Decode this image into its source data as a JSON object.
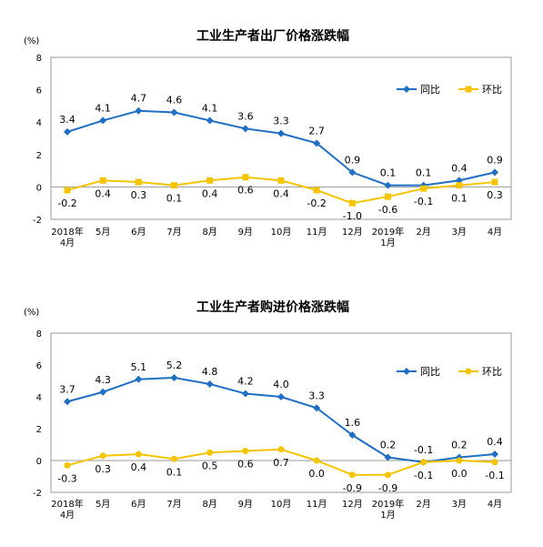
{
  "chart_data": [
    {
      "type": "line",
      "title": "工业生产者出厂价格涨跌幅",
      "unit": "(%)",
      "ylim": [
        -2,
        8
      ],
      "yticks": [
        "-2",
        "0",
        "2",
        "4",
        "6",
        "8"
      ],
      "categories": [
        [
          "2018年",
          "4月"
        ],
        [
          "5月"
        ],
        [
          "6月"
        ],
        [
          "7月"
        ],
        [
          "8月"
        ],
        [
          "9月"
        ],
        [
          "10月"
        ],
        [
          "11月"
        ],
        [
          "12月"
        ],
        [
          "2019年",
          "1月"
        ],
        [
          "2月"
        ],
        [
          "3月"
        ],
        [
          "4月"
        ]
      ],
      "legend_position": "top-right",
      "series": [
        {
          "name": "同比",
          "color": "#1f6fc4",
          "marker": "diamond",
          "values": [
            3.4,
            4.1,
            4.7,
            4.6,
            4.1,
            3.6,
            3.3,
            2.7,
            0.9,
            0.1,
            0.1,
            0.4,
            0.9
          ],
          "labels": [
            "3.4",
            "4.1",
            "4.7",
            "4.6",
            "4.1",
            "3.6",
            "3.3",
            "2.7",
            "0.9",
            "0.1",
            "0.1",
            "0.4",
            "0.9"
          ],
          "label_position": "above"
        },
        {
          "name": "环比",
          "color": "#f5c400",
          "marker": "square",
          "values": [
            -0.2,
            0.4,
            0.3,
            0.1,
            0.4,
            0.6,
            0.4,
            -0.2,
            -1.0,
            -0.6,
            -0.1,
            0.1,
            0.3
          ],
          "labels": [
            "-0.2",
            "0.4",
            "0.3",
            "0.1",
            "0.4",
            "0.6",
            "0.4",
            "-0.2",
            "-1.0",
            "-0.6",
            "-0.1",
            "0.1",
            "0.3"
          ],
          "label_position": "below"
        }
      ]
    },
    {
      "type": "line",
      "title": "工业生产者购进价格涨跌幅",
      "unit": "(%)",
      "ylim": [
        -2,
        8
      ],
      "yticks": [
        "-2",
        "0",
        "2",
        "4",
        "6",
        "8"
      ],
      "categories": [
        [
          "2018年",
          "4月"
        ],
        [
          "5月"
        ],
        [
          "6月"
        ],
        [
          "7月"
        ],
        [
          "8月"
        ],
        [
          "9月"
        ],
        [
          "10月"
        ],
        [
          "11月"
        ],
        [
          "12月"
        ],
        [
          "2019年",
          "1月"
        ],
        [
          "2月"
        ],
        [
          "3月"
        ],
        [
          "4月"
        ]
      ],
      "legend_position": "top-right",
      "series": [
        {
          "name": "同比",
          "color": "#1f6fc4",
          "marker": "diamond",
          "values": [
            3.7,
            4.3,
            5.1,
            5.2,
            4.8,
            4.2,
            4.0,
            3.3,
            1.6,
            0.2,
            -0.1,
            0.2,
            0.4
          ],
          "labels": [
            "3.7",
            "4.3",
            "5.1",
            "5.2",
            "4.8",
            "4.2",
            "4.0",
            "3.3",
            "1.6",
            "0.2",
            "-0.1",
            "0.2",
            "0.4"
          ],
          "label_position": "above"
        },
        {
          "name": "环比",
          "color": "#f5c400",
          "marker": "circle",
          "values": [
            -0.3,
            0.3,
            0.4,
            0.1,
            0.5,
            0.6,
            0.7,
            0.0,
            -0.9,
            -0.9,
            -0.1,
            0.0,
            -0.1
          ],
          "labels": [
            "-0.3",
            "0.3",
            "0.4",
            "0.1",
            "0.5",
            "0.6",
            "0.7",
            "0.0",
            "-0.9",
            "-0.9",
            "-0.1",
            "0.0",
            "-0.1"
          ],
          "label_position": "below"
        }
      ]
    }
  ]
}
